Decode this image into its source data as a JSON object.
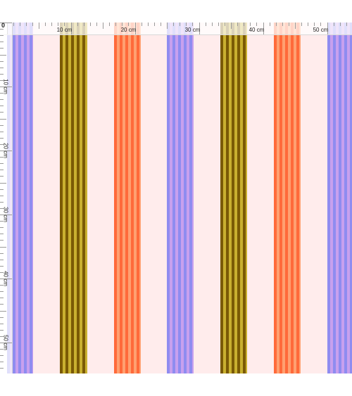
{
  "ruler": {
    "origin_label": "0",
    "top_labels": [
      "10 cm",
      "20 cm",
      "30 cm",
      "40 cm",
      "50 cm"
    ],
    "left_labels": [
      "10 cm",
      "20 cm",
      "30 cm",
      "40 cm",
      "50 cm"
    ]
  },
  "colors": {
    "background": "#ffecec",
    "periwinkle": "#8f8cf0",
    "lavender": "#c8a0ee",
    "olive_dark": "#7a5a05",
    "olive_light": "#c9b030",
    "coral": "#ff6a3a",
    "coral_light": "#ffa070",
    "ruler_line": "#9a9a9a"
  }
}
